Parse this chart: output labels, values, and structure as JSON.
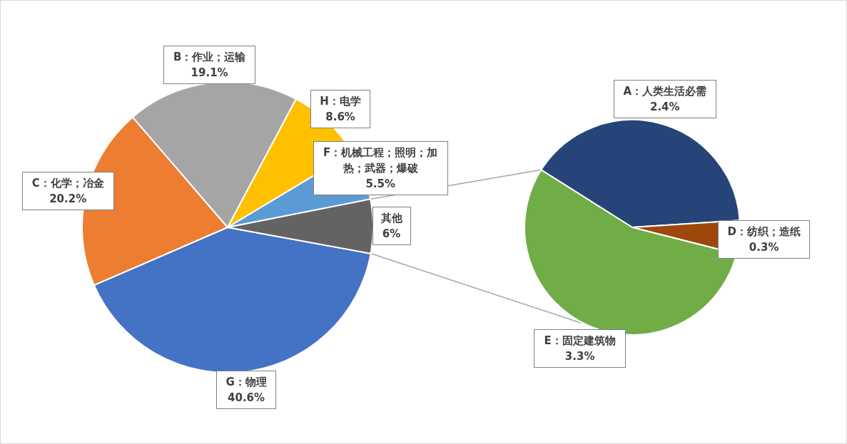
{
  "chart_data": [
    {
      "type": "pie",
      "categories": [
        "G：物理",
        "C：化学；冶金",
        "B：作业；运输",
        "H：电学",
        "F：机械工程；照明；加热；武器；爆破",
        "其他"
      ],
      "values": [
        40.6,
        20.2,
        19.1,
        8.6,
        5.5,
        6
      ],
      "colors": [
        "#4472c4",
        "#ed7d31",
        "#a5a5a5",
        "#ffc000",
        "#5b9bd5",
        "#636363"
      ],
      "value_labels": [
        "40.6%",
        "20.2%",
        "19.1%",
        "8.6%",
        "5.5%",
        "6%"
      ]
    },
    {
      "type": "pie",
      "categories": [
        "A：人类生活必需",
        "D：纺织；造纸",
        "E：固定建筑物"
      ],
      "values": [
        2.4,
        0.3,
        3.3
      ],
      "colors": [
        "#264478",
        "#9e480e",
        "#70ad47"
      ],
      "value_labels": [
        "2.4%",
        "0.3%",
        "3.3%"
      ]
    }
  ]
}
